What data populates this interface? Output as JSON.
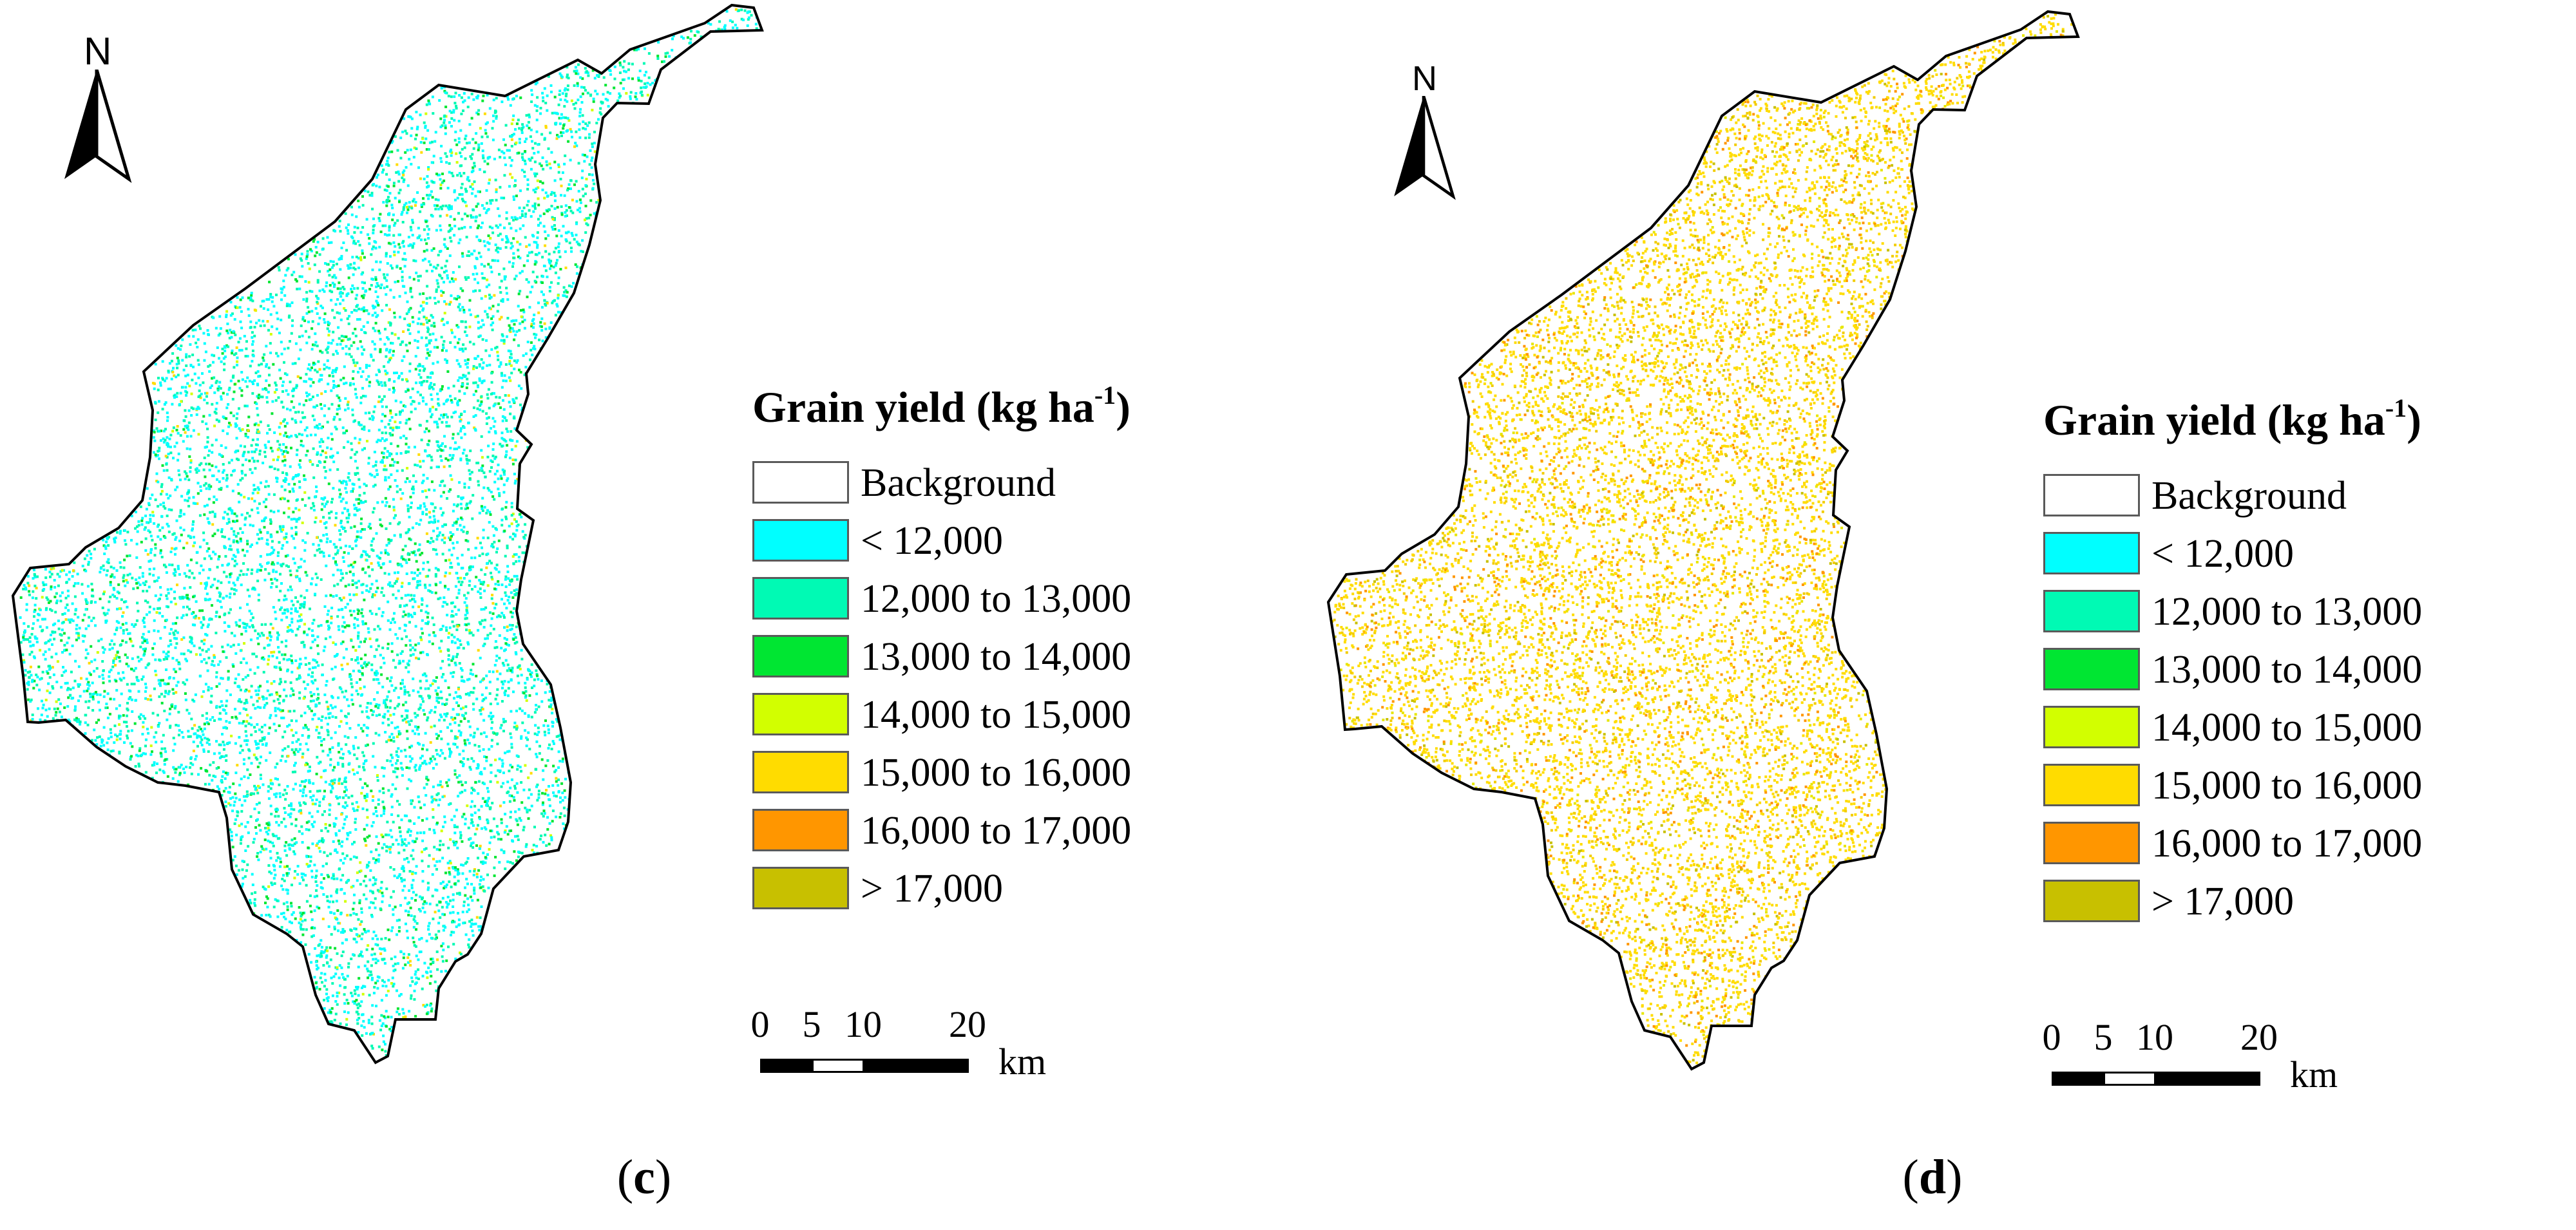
{
  "panels": [
    {
      "caption": "c",
      "palette": [
        "#00ffff",
        "#00fab4",
        "#00e632",
        "#d2ff00",
        "#ffdc00"
      ],
      "weights": [
        0.52,
        0.33,
        0.1,
        0.03,
        0.02
      ],
      "dot_count": 9000,
      "seed": 11
    },
    {
      "caption": "d",
      "palette": [
        "#ffdc00",
        "#f2cc00",
        "#ff9600",
        "#c8c000",
        "#e6e600"
      ],
      "weights": [
        0.7,
        0.1,
        0.1,
        0.05,
        0.05
      ],
      "dot_count": 11000,
      "seed": 29
    }
  ],
  "north_arrow": {
    "label": "N"
  },
  "legend": {
    "title_main": "Grain yield (kg ha",
    "title_sup": "-1",
    "title_end": ")",
    "items": [
      {
        "label": "Background",
        "color": "#ffffff"
      },
      {
        "label": "< 12,000",
        "color": "#00ffff"
      },
      {
        "label": "12,000 to 13,000",
        "color": "#00fab4"
      },
      {
        "label": "13,000 to 14,000",
        "color": "#00e632"
      },
      {
        "label": "14,000 to 15,000",
        "color": "#d2ff00"
      },
      {
        "label": "15,000 to 16,000",
        "color": "#ffdc00"
      },
      {
        "label": "16,000 to 17,000",
        "color": "#ff9600"
      },
      {
        "label": "> 17,000",
        "color": "#c8c000"
      }
    ]
  },
  "scale_bar": {
    "ticks": [
      "0",
      "5",
      "10",
      "20"
    ],
    "unit": "km"
  }
}
